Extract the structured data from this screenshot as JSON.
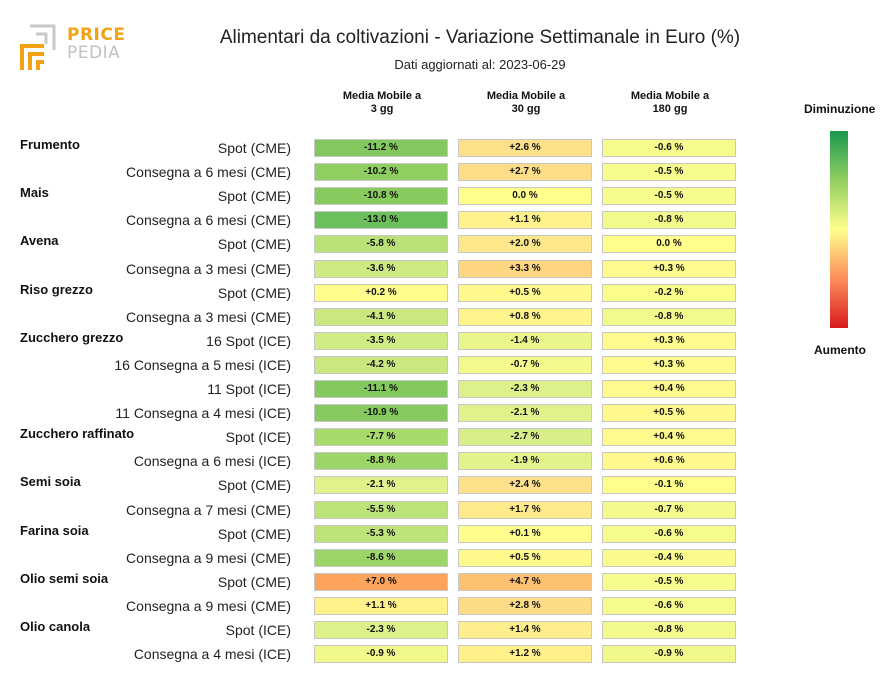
{
  "logo": {
    "line1": "PRICE",
    "line2": "PEDIA"
  },
  "title": "Alimentari da coltivazioni - Variazione Settimanale in Euro (%)",
  "subtitle": "Dati aggiornati al: 2023-06-29",
  "legend": {
    "top": "Diminuzione",
    "bottom": "Aumento"
  },
  "chart_data": {
    "type": "table",
    "columns": [
      {
        "line1": "Media Mobile a",
        "line2": "3 gg"
      },
      {
        "line1": "Media Mobile a",
        "line2": "30 gg"
      },
      {
        "line1": "Media Mobile a",
        "line2": "180 gg"
      }
    ],
    "rows": [
      {
        "group": "Frumento",
        "label": "Spot (CME)",
        "values": [
          -11.2,
          2.6,
          -0.6
        ]
      },
      {
        "group": "",
        "label": "Consegna a 6 mesi (CME)",
        "values": [
          -10.2,
          2.7,
          -0.5
        ]
      },
      {
        "group": "Mais",
        "label": "Spot (CME)",
        "values": [
          -10.8,
          0.0,
          -0.5
        ]
      },
      {
        "group": "",
        "label": "Consegna a 6 mesi (CME)",
        "values": [
          -13.0,
          1.1,
          -0.8
        ]
      },
      {
        "group": "Avena",
        "label": "Spot (CME)",
        "values": [
          -5.8,
          2.0,
          0.0
        ]
      },
      {
        "group": "",
        "label": "Consegna a 3 mesi (CME)",
        "values": [
          -3.6,
          3.3,
          0.3
        ]
      },
      {
        "group": "Riso grezzo",
        "label": "Spot (CME)",
        "values": [
          0.2,
          0.5,
          -0.2
        ]
      },
      {
        "group": "",
        "label": "Consegna a 3 mesi (CME)",
        "values": [
          -4.1,
          0.8,
          -0.8
        ]
      },
      {
        "group": "Zucchero grezzo",
        "label": "16 Spot (ICE)",
        "values": [
          -3.5,
          -1.4,
          0.3
        ]
      },
      {
        "group": "",
        "label": "16 Consegna a 5 mesi (ICE)",
        "values": [
          -4.2,
          -0.7,
          0.3
        ]
      },
      {
        "group": "",
        "label": "11 Spot (ICE)",
        "values": [
          -11.1,
          -2.3,
          0.4
        ]
      },
      {
        "group": "",
        "label": "11 Consegna a 4 mesi (ICE)",
        "values": [
          -10.9,
          -2.1,
          0.5
        ]
      },
      {
        "group": "Zucchero raffinato",
        "label": "Spot (ICE)",
        "values": [
          -7.7,
          -2.7,
          0.4
        ]
      },
      {
        "group": "",
        "label": "Consegna a 6 mesi (ICE)",
        "values": [
          -8.8,
          -1.9,
          0.6
        ]
      },
      {
        "group": "Semi soia",
        "label": "Spot (CME)",
        "values": [
          -2.1,
          2.4,
          -0.1
        ]
      },
      {
        "group": "",
        "label": "Consegna a 7 mesi (CME)",
        "values": [
          -5.5,
          1.7,
          -0.7
        ]
      },
      {
        "group": "Farina soia",
        "label": "Spot (CME)",
        "values": [
          -5.3,
          0.1,
          -0.6
        ]
      },
      {
        "group": "",
        "label": "Consegna a 9 mesi (CME)",
        "values": [
          -8.6,
          0.5,
          -0.4
        ]
      },
      {
        "group": "Olio semi soia",
        "label": "Spot (CME)",
        "values": [
          7.0,
          4.7,
          -0.5
        ]
      },
      {
        "group": "",
        "label": "Consegna a 9 mesi (CME)",
        "values": [
          1.1,
          2.8,
          -0.6
        ]
      },
      {
        "group": "Olio canola",
        "label": "Spot (ICE)",
        "values": [
          -2.3,
          1.4,
          -0.8
        ]
      },
      {
        "group": "",
        "label": "Consegna a 4 mesi (ICE)",
        "values": [
          -0.9,
          1.2,
          -0.9
        ]
      }
    ],
    "colorscale": {
      "low": "#1a9850",
      "mid": "#ffff8c",
      "high": "#d7191c"
    }
  }
}
